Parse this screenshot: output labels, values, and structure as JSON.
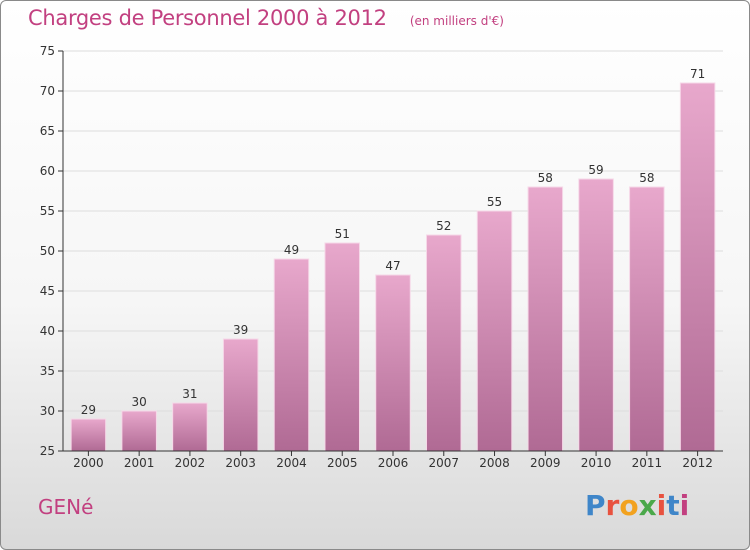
{
  "header": {
    "title": "Charges de Personnel 2000 à 2012",
    "subtitle": "(en milliers d'€)"
  },
  "footer": {
    "commune": "GENé",
    "logo_letters": [
      {
        "ch": "P",
        "color": "#3f86c9"
      },
      {
        "ch": "r",
        "color": "#e8523f"
      },
      {
        "ch": "o",
        "color": "#f2a21f"
      },
      {
        "ch": "x",
        "color": "#4aa84a"
      },
      {
        "ch": "i",
        "color": "#e8523f"
      },
      {
        "ch": "t",
        "color": "#3f86c9"
      },
      {
        "ch": "i",
        "color": "#c24080"
      }
    ]
  },
  "colors": {
    "accent": "#c24080",
    "bar_top": "#e8a8cc",
    "bar_bottom": "#b06a94",
    "axis": "#333333",
    "grid": "#dddddd"
  },
  "chart_data": {
    "type": "bar",
    "title": "Charges de Personnel 2000 à 2012",
    "subtitle": "(en milliers d'€)",
    "categories": [
      "2000",
      "2001",
      "2002",
      "2003",
      "2004",
      "2005",
      "2006",
      "2007",
      "2008",
      "2009",
      "2010",
      "2011",
      "2012"
    ],
    "values": [
      29,
      30,
      31,
      39,
      49,
      51,
      47,
      52,
      55,
      58,
      59,
      58,
      71
    ],
    "ylim": [
      25,
      75
    ],
    "yticks": [
      25,
      30,
      35,
      40,
      45,
      50,
      55,
      60,
      65,
      70,
      75
    ],
    "grid": true,
    "data_labels": true
  }
}
